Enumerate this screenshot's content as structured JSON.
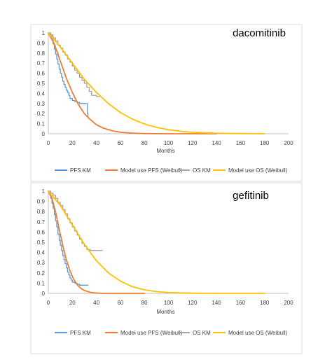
{
  "chart_data": [
    {
      "type": "line",
      "title": "dacomitinib",
      "xlabel": "Months",
      "ylabel": "",
      "xlim": [
        0,
        200
      ],
      "ylim": [
        0,
        1
      ],
      "xticks": [
        0,
        20,
        40,
        60,
        80,
        100,
        120,
        140,
        160,
        180,
        200
      ],
      "yticks": [
        0,
        0.1,
        0.2,
        0.3,
        0.4,
        0.5,
        0.6,
        0.7,
        0.8,
        0.9,
        1
      ],
      "xtick_labels": [
        "0",
        "20",
        "40",
        "60",
        "80",
        "100",
        "120",
        "140",
        "160",
        "180",
        "200"
      ],
      "ytick_labels": [
        "0",
        "0.1",
        "0.2",
        "0.3",
        "0.4",
        "0.5",
        "0.6",
        "0.7",
        "0.8",
        "0.9",
        "1"
      ],
      "grid": false,
      "legend_position": "bottom",
      "series": [
        {
          "name": "PFS KM",
          "kind": "step",
          "color": "#5B9BD5",
          "x": [
            0,
            2,
            3,
            4,
            5,
            6,
            7,
            8,
            9,
            10,
            11,
            12,
            13,
            14,
            15,
            16,
            17,
            18,
            20,
            22,
            24,
            26,
            28,
            30,
            32,
            32.5,
            33
          ],
          "y": [
            1,
            0.97,
            0.93,
            0.89,
            0.84,
            0.79,
            0.74,
            0.69,
            0.64,
            0.6,
            0.56,
            0.52,
            0.49,
            0.46,
            0.43,
            0.41,
            0.38,
            0.35,
            0.33,
            0.32,
            0.31,
            0.3,
            0.3,
            0.3,
            0.3,
            0.2,
            0.16
          ]
        },
        {
          "name": "Model use PFS (Weibull)",
          "kind": "curve",
          "color": "#ED7D31",
          "x": [
            0,
            5,
            10,
            15,
            20,
            25,
            30,
            35,
            40,
            45,
            50,
            55,
            60,
            70,
            80,
            90,
            100,
            110,
            120,
            130,
            140
          ],
          "y": [
            1,
            0.89,
            0.72,
            0.55,
            0.41,
            0.29,
            0.2,
            0.14,
            0.09,
            0.06,
            0.04,
            0.025,
            0.015,
            0.006,
            0.002,
            0.001,
            0,
            0,
            0,
            0,
            0
          ]
        },
        {
          "name": "OS KM",
          "kind": "step",
          "color": "#A5A5A5",
          "x": [
            0,
            2,
            4,
            6,
            8,
            10,
            12,
            14,
            16,
            18,
            20,
            22,
            24,
            26,
            28,
            30,
            32,
            34,
            36,
            40,
            43
          ],
          "y": [
            1,
            0.98,
            0.95,
            0.92,
            0.88,
            0.85,
            0.81,
            0.78,
            0.74,
            0.71,
            0.67,
            0.63,
            0.6,
            0.56,
            0.53,
            0.5,
            0.46,
            0.42,
            0.38,
            0.37,
            0.37
          ]
        },
        {
          "name": "Model use OS (Weibull)",
          "kind": "curve",
          "color": "#FFC000",
          "x": [
            0,
            10,
            20,
            30,
            40,
            50,
            60,
            70,
            80,
            90,
            100,
            110,
            120,
            130,
            140,
            150,
            160,
            170,
            180
          ],
          "y": [
            1,
            0.86,
            0.7,
            0.54,
            0.41,
            0.3,
            0.21,
            0.145,
            0.097,
            0.063,
            0.04,
            0.025,
            0.015,
            0.009,
            0.005,
            0.003,
            0.002,
            0.001,
            0
          ]
        }
      ]
    },
    {
      "type": "line",
      "title": "gefitinib",
      "xlabel": "Months",
      "ylabel": "",
      "xlim": [
        0,
        200
      ],
      "ylim": [
        0,
        1
      ],
      "xticks": [
        0,
        20,
        40,
        60,
        80,
        100,
        120,
        140,
        160,
        180,
        200
      ],
      "yticks": [
        0,
        0.1,
        0.2,
        0.3,
        0.4,
        0.5,
        0.6,
        0.7,
        0.8,
        0.9,
        1
      ],
      "xtick_labels": [
        "0",
        "20",
        "40",
        "60",
        "80",
        "100",
        "120",
        "140",
        "160",
        "180",
        "200"
      ],
      "ytick_labels": [
        "0",
        "0.1",
        "0.2",
        "0.3",
        "0.4",
        "0.5",
        "0.6",
        "0.7",
        "0.8",
        "0.9",
        "1"
      ],
      "grid": false,
      "legend_position": "bottom",
      "series": [
        {
          "name": "PFS KM",
          "kind": "step",
          "color": "#5B9BD5",
          "x": [
            0,
            1,
            2,
            3,
            4,
            5,
            6,
            7,
            8,
            9,
            10,
            11,
            12,
            13,
            14,
            15,
            16,
            17,
            18,
            19,
            20,
            22,
            24,
            26,
            30,
            33
          ],
          "y": [
            1,
            0.97,
            0.93,
            0.88,
            0.83,
            0.77,
            0.71,
            0.65,
            0.58,
            0.52,
            0.47,
            0.42,
            0.37,
            0.33,
            0.29,
            0.25,
            0.21,
            0.18,
            0.15,
            0.13,
            0.11,
            0.1,
            0.09,
            0.08,
            0.08,
            0.08
          ]
        },
        {
          "name": "Model use PFS (Weibull)",
          "kind": "curve",
          "color": "#ED7D31",
          "x": [
            0,
            3,
            6,
            9,
            12,
            15,
            18,
            21,
            24,
            27,
            30,
            35,
            40,
            45,
            50,
            60,
            70,
            80
          ],
          "y": [
            1,
            0.93,
            0.8,
            0.63,
            0.47,
            0.33,
            0.22,
            0.14,
            0.085,
            0.05,
            0.028,
            0.01,
            0.003,
            0.001,
            0,
            0,
            0,
            0
          ]
        },
        {
          "name": "OS KM",
          "kind": "step",
          "color": "#A5A5A5",
          "x": [
            0,
            2,
            4,
            6,
            8,
            10,
            12,
            14,
            16,
            18,
            20,
            22,
            24,
            26,
            28,
            30,
            32,
            35,
            45
          ],
          "y": [
            1,
            0.98,
            0.96,
            0.93,
            0.89,
            0.86,
            0.82,
            0.78,
            0.73,
            0.69,
            0.65,
            0.61,
            0.57,
            0.53,
            0.49,
            0.46,
            0.43,
            0.42,
            0.42
          ]
        },
        {
          "name": "Model use OS (Weibull)",
          "kind": "curve",
          "color": "#FFC000",
          "x": [
            0,
            10,
            20,
            30,
            40,
            50,
            60,
            70,
            80,
            90,
            100,
            110,
            120,
            130,
            140,
            150,
            160,
            170,
            180
          ],
          "y": [
            1,
            0.86,
            0.67,
            0.48,
            0.32,
            0.2,
            0.12,
            0.065,
            0.034,
            0.017,
            0.008,
            0.004,
            0.002,
            0.001,
            0,
            0,
            0,
            0,
            0
          ]
        }
      ]
    }
  ]
}
